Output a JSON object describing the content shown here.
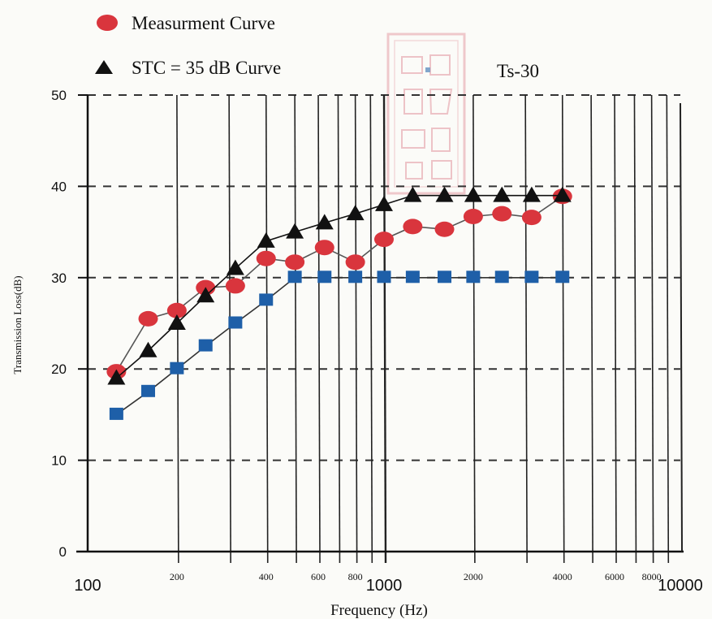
{
  "chart_data": {
    "type": "line",
    "x_scale": "log",
    "xlabel": "Frequency (Hz)",
    "ylabel": "Transmission Loss(dB)",
    "xlim": [
      100,
      10000
    ],
    "ylim": [
      0,
      50
    ],
    "y_ticks": [
      "0",
      "10",
      "20",
      "30",
      "40",
      "50"
    ],
    "x_ticks_major": [
      {
        "value": 100,
        "label": "100"
      },
      {
        "value": 1000,
        "label": "1000"
      },
      {
        "value": 10000,
        "label": "10000"
      }
    ],
    "x_ticks_minor": [
      {
        "value": 200,
        "label": "200"
      },
      {
        "value": 400,
        "label": "400"
      },
      {
        "value": 600,
        "label": "600"
      },
      {
        "value": 800,
        "label": "800"
      },
      {
        "value": 2000,
        "label": "2000"
      },
      {
        "value": 4000,
        "label": "4000"
      },
      {
        "value": 6000,
        "label": "6000"
      },
      {
        "value": 8000,
        "label": "8000"
      }
    ],
    "annotation": "Ts-30",
    "grid": true,
    "legend_position": "top-left",
    "x": [
      125,
      160,
      200,
      250,
      315,
      400,
      500,
      630,
      800,
      1000,
      1250,
      1600,
      2000,
      2500,
      3150,
      4000
    ],
    "series": [
      {
        "name": "Measurment Curve",
        "marker": "circle",
        "color": "#d9353d",
        "line_color": "#555555",
        "values": [
          19.7,
          25.5,
          26.4,
          28.9,
          29.1,
          32.1,
          31.7,
          33.3,
          31.7,
          34.2,
          35.6,
          35.3,
          36.7,
          37.0,
          36.6,
          38.9
        ]
      },
      {
        "name": "STC = 35 dB Curve",
        "marker": "triangle",
        "color": "#111111",
        "line_color": "#111111",
        "values": [
          19.0,
          22.0,
          25.0,
          28.0,
          31.0,
          34.0,
          35.0,
          36.0,
          37.0,
          38.0,
          39.0,
          39.0,
          39.0,
          39.0,
          39.0,
          39.0
        ]
      },
      {
        "marker": "square",
        "color": "#1e5fa8",
        "line_color": "#333333",
        "values": [
          15.0,
          17.5,
          20.0,
          22.5,
          25.0,
          27.5,
          30.0,
          30.0,
          30.0,
          30.0,
          30.0,
          30.0,
          30.0,
          30.0,
          30.0,
          30.0
        ]
      }
    ]
  }
}
